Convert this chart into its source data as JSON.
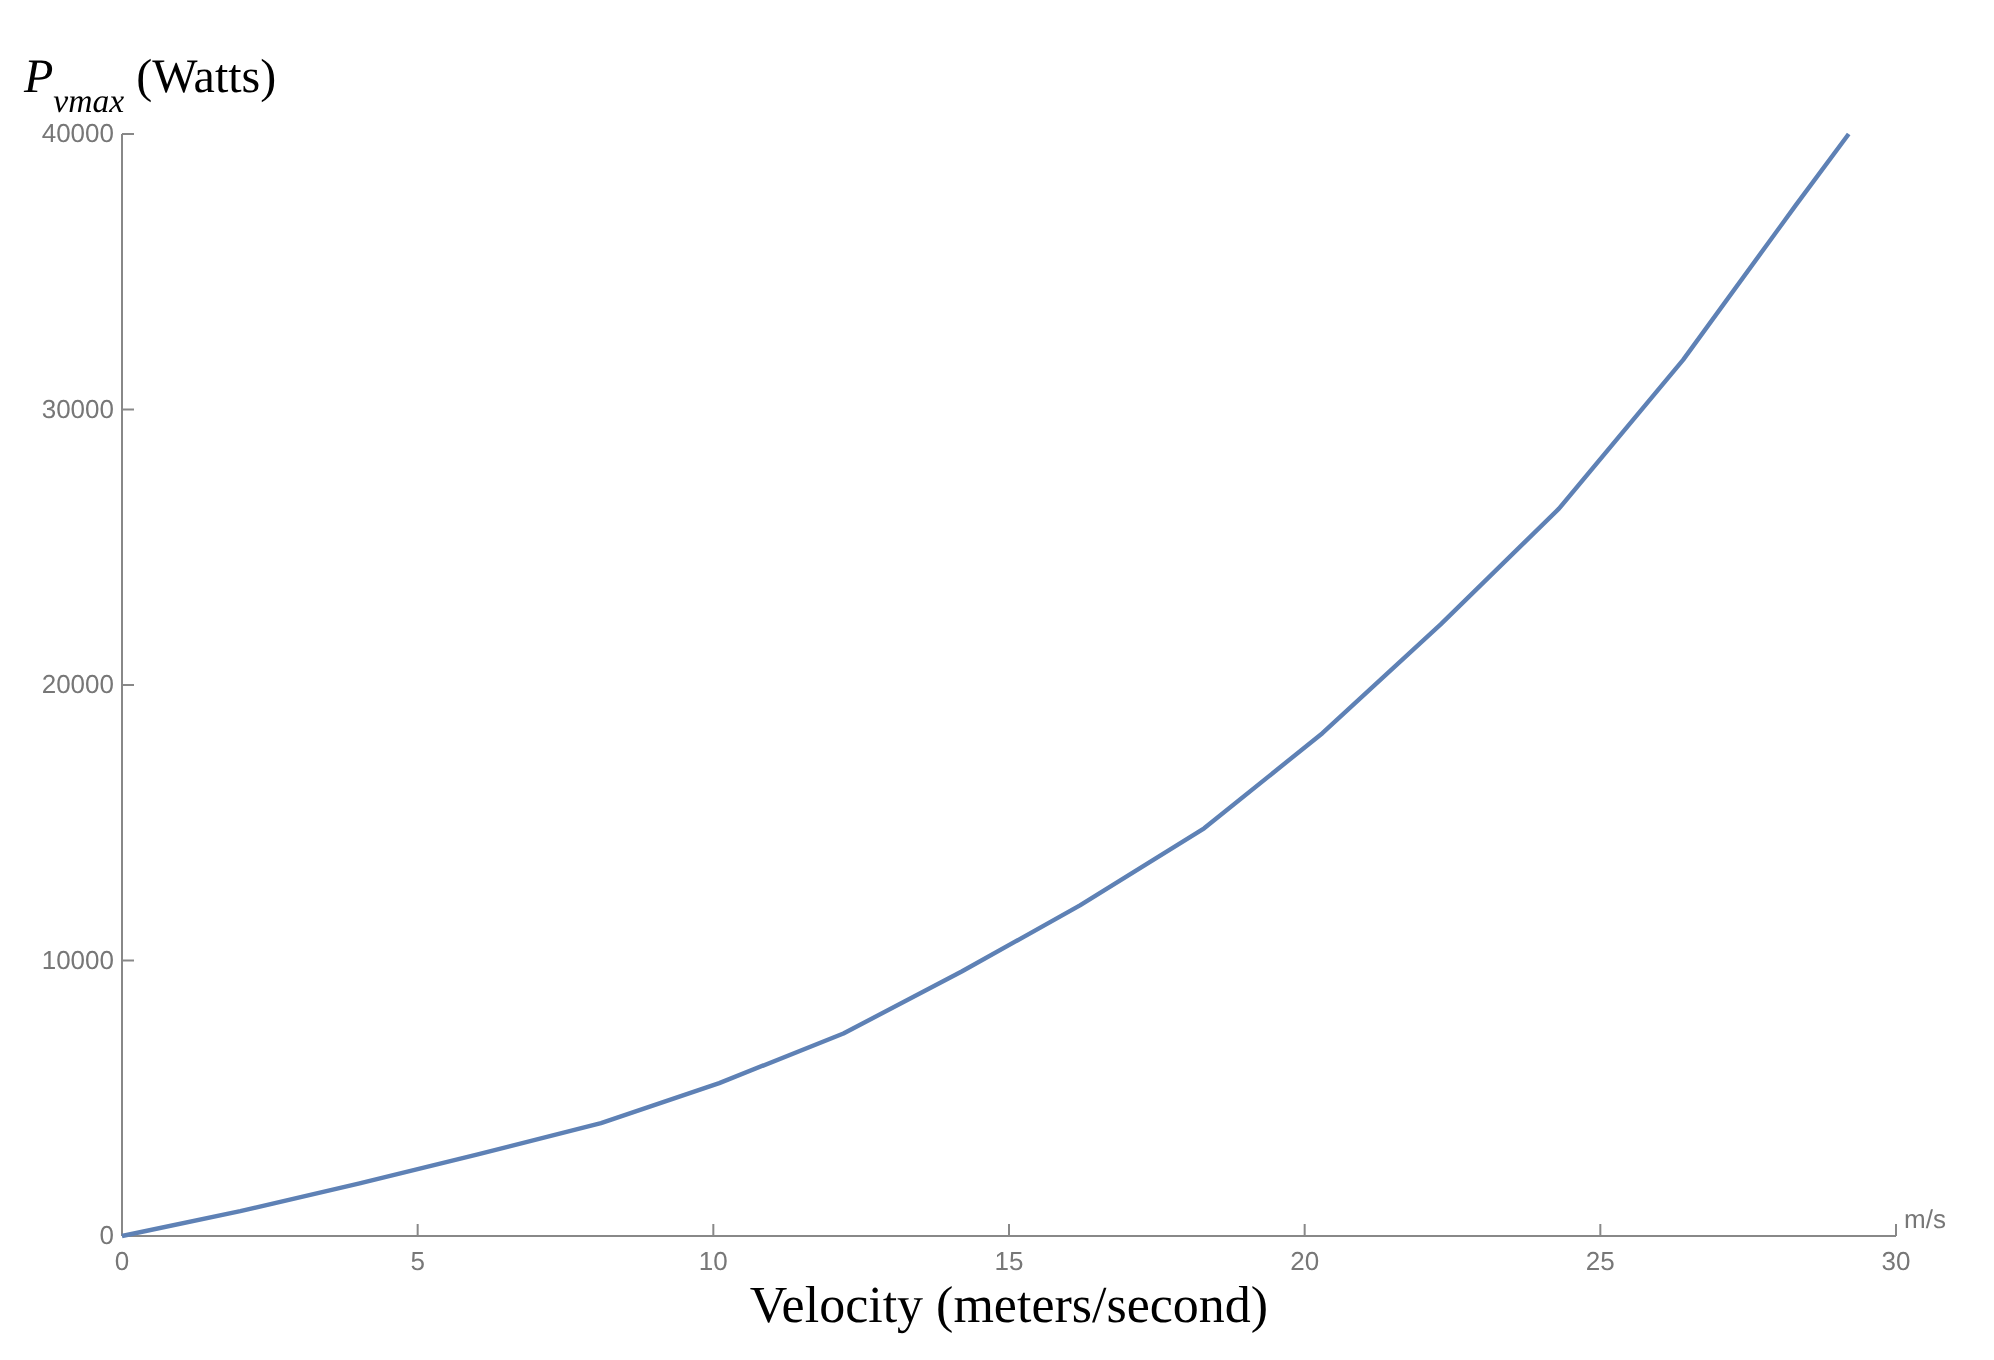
{
  "chart_data": {
    "type": "line",
    "ylabel": "P$_{vmax}$ (Watts)",
    "xlabel": "Velocity (meters/second)",
    "annotations": [
      "m/s"
    ],
    "x": [
      0,
      2,
      4,
      6,
      8.1,
      10.1,
      12.2,
      14.2,
      16.2,
      18.3,
      20.3,
      22.3,
      24.3,
      26.4,
      28.3,
      29.2
    ],
    "series": [
      {
        "color": "#5e81b5",
        "values": [
          0,
          900,
          1900,
          2950,
          4100,
          5550,
          7350,
          9600,
          12000,
          14800,
          18250,
          22200,
          26400,
          31800,
          37400,
          40000
        ]
      }
    ],
    "xlim": [
      0,
      30
    ],
    "xticks": [
      0,
      5,
      10,
      15,
      20,
      25,
      30
    ],
    "ylim": [
      0,
      40000
    ],
    "yticks": [
      0,
      10000,
      20000,
      30000,
      40000
    ],
    "grid": false,
    "marker": "none",
    "line_style": "solid"
  }
}
